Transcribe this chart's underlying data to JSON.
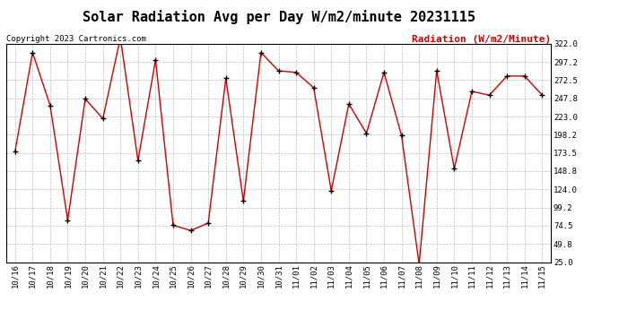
{
  "title": "Solar Radiation Avg per Day W/m2/minute 20231115",
  "copyright": "Copyright 2023 Cartronics.com",
  "legend_label": "Radiation (W/m2/Minute)",
  "dates": [
    "10/16",
    "10/17",
    "10/18",
    "10/19",
    "10/20",
    "10/21",
    "10/22",
    "10/23",
    "10/24",
    "10/25",
    "10/26",
    "10/27",
    "10/28",
    "10/29",
    "10/30",
    "10/31",
    "11/01",
    "11/02",
    "11/03",
    "11/04",
    "11/05",
    "11/06",
    "11/07",
    "11/08",
    "11/09",
    "11/10",
    "11/11",
    "11/12",
    "11/13",
    "11/14",
    "11/15"
  ],
  "values": [
    175,
    310,
    238,
    82,
    247,
    220,
    330,
    163,
    300,
    75,
    68,
    78,
    275,
    108,
    310,
    285,
    283,
    262,
    122,
    240,
    200,
    283,
    197,
    22,
    285,
    152,
    257,
    252,
    278,
    278,
    252
  ],
  "line_color": "#cc0000",
  "marker_color": "#000000",
  "background_color": "#ffffff",
  "grid_color": "#bbbbbb",
  "ymin": 25.0,
  "ymax": 322.0,
  "yticks": [
    25.0,
    49.8,
    74.5,
    99.2,
    124.0,
    148.8,
    173.5,
    198.2,
    223.0,
    247.8,
    272.5,
    297.2,
    322.0
  ],
  "title_fontsize": 11,
  "copyright_fontsize": 6.5,
  "legend_fontsize": 8,
  "tick_fontsize": 6.5,
  "ylabel_right_color": "#cc0000",
  "border_color": "#000000"
}
